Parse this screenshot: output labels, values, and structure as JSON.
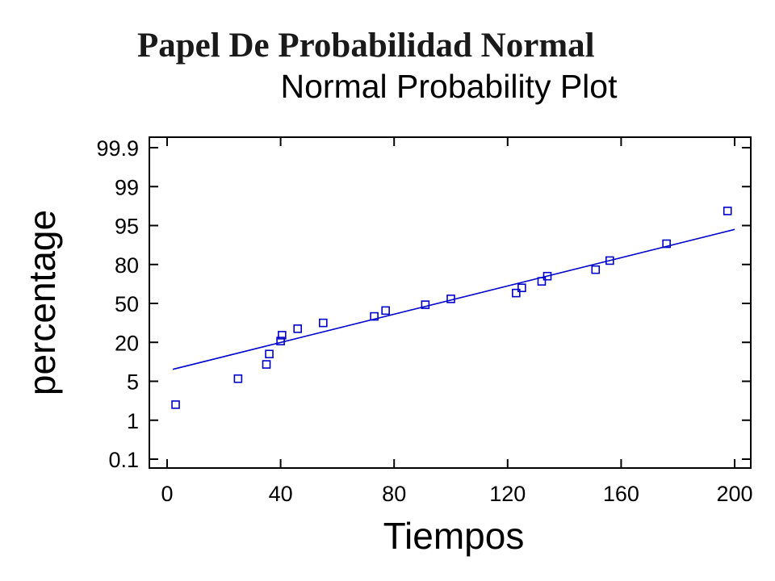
{
  "slide": {
    "title": "Papel  De Probabilidad Normal"
  },
  "chart_data": {
    "type": "scatter",
    "title": "Normal Probability Plot",
    "xlabel": "Tiempos",
    "ylabel": "percentage",
    "scale_y": "normal-probability",
    "xlim": [
      -5,
      205
    ],
    "x_ticks": [
      0,
      40,
      80,
      120,
      160,
      200
    ],
    "y_ticks": [
      0.1,
      1,
      5,
      20,
      50,
      80,
      95,
      99,
      99.9
    ],
    "y_tick_labels": [
      "0.1",
      "1",
      "5",
      "20",
      "50",
      "80",
      "95",
      "99",
      "99.9"
    ],
    "grid": false,
    "series": [
      {
        "marker": "square-open",
        "color": "#0000cc",
        "points": [
          {
            "x": 3,
            "y": 2.6
          },
          {
            "x": 25,
            "y": 6.0
          },
          {
            "x": 35,
            "y": 11.5
          },
          {
            "x": 36,
            "y": 15.5
          },
          {
            "x": 40,
            "y": 21.0
          },
          {
            "x": 40.5,
            "y": 25.5
          },
          {
            "x": 46,
            "y": 30.5
          },
          {
            "x": 55,
            "y": 35.0
          },
          {
            "x": 73,
            "y": 40.0
          },
          {
            "x": 77,
            "y": 44.5
          },
          {
            "x": 91,
            "y": 49.0
          },
          {
            "x": 100,
            "y": 53.5
          },
          {
            "x": 123,
            "y": 58.0
          },
          {
            "x": 125,
            "y": 62.0
          },
          {
            "x": 132,
            "y": 67.0
          },
          {
            "x": 134,
            "y": 71.0
          },
          {
            "x": 151,
            "y": 76.0
          },
          {
            "x": 156,
            "y": 81.5
          },
          {
            "x": 176,
            "y": 88.0
          },
          {
            "x": 197.5,
            "y": 96.5
          }
        ]
      }
    ],
    "fit_line": {
      "color": "#0000cc",
      "x": [
        2,
        200
      ],
      "y": [
        9.6,
        93.5
      ]
    }
  }
}
